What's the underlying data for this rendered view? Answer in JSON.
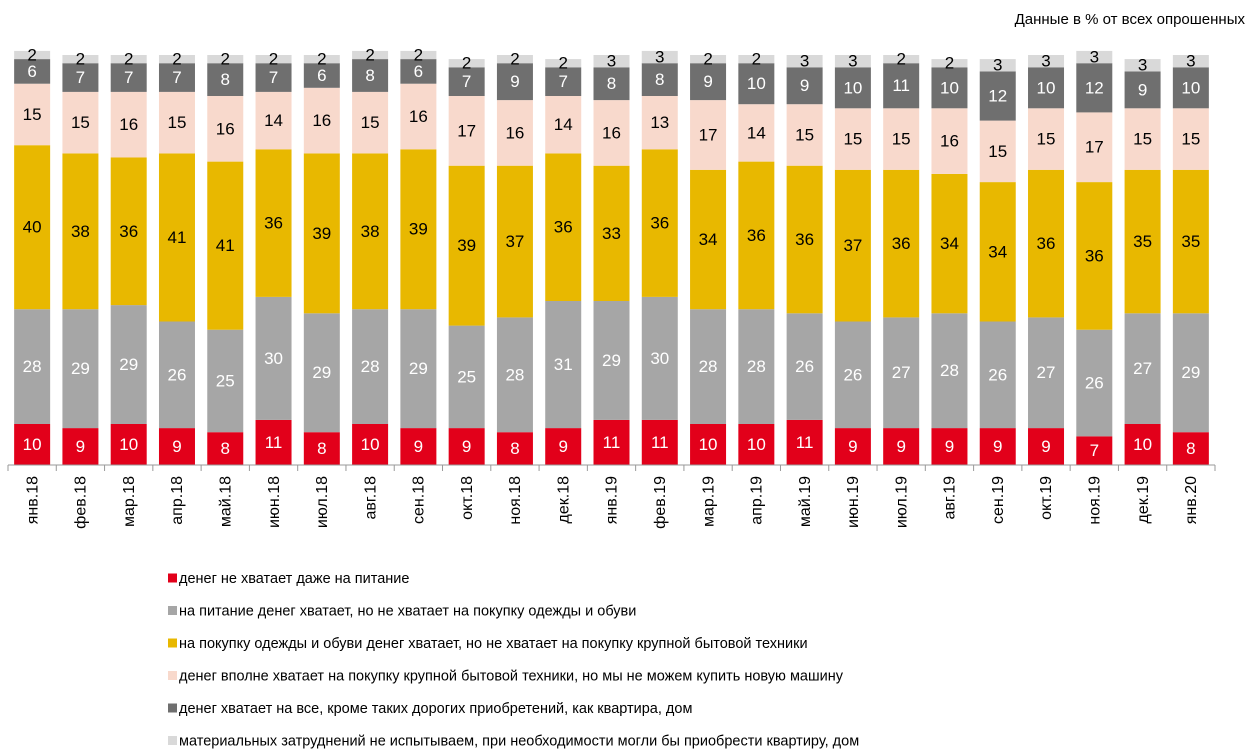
{
  "chart_data": {
    "type": "stacked_bar",
    "note": "Данные в % от всех опрошенных",
    "categories": [
      "янв.18",
      "фев.18",
      "мар.18",
      "апр.18",
      "май.18",
      "июн.18",
      "июл.18",
      "авг.18",
      "сен.18",
      "окт.18",
      "ноя.18",
      "дек.18",
      "янв.19",
      "фев.19",
      "мар.19",
      "апр.19",
      "май.19",
      "июн.19",
      "июл.19",
      "авг.19",
      "сен.19",
      "окт.19",
      "ноя.19",
      "дек.19",
      "янв.20"
    ],
    "series": [
      {
        "name": "денег не хватает даже на питание",
        "color": "#e2001a",
        "label_color": "#ffffff",
        "values": [
          10,
          9,
          10,
          9,
          8,
          11,
          8,
          10,
          9,
          9,
          8,
          9,
          11,
          11,
          10,
          10,
          11,
          9,
          9,
          9,
          9,
          9,
          7,
          10,
          8
        ]
      },
      {
        "name": "на питание денег хватает, но не хватает на покупку одежды и обуви",
        "color": "#a6a6a6",
        "label_color": "#ffffff",
        "values": [
          28,
          29,
          29,
          26,
          25,
          30,
          29,
          28,
          29,
          25,
          28,
          31,
          29,
          30,
          28,
          28,
          26,
          26,
          27,
          28,
          26,
          27,
          26,
          27,
          29
        ]
      },
      {
        "name": "на покупку одежды и обуви денег хватает,  но не хватает на покупку крупной бытовой техники",
        "color": "#e8b800",
        "label_color": "#000000",
        "values": [
          40,
          38,
          36,
          41,
          41,
          36,
          39,
          38,
          39,
          39,
          37,
          36,
          33,
          36,
          34,
          36,
          36,
          37,
          36,
          34,
          34,
          36,
          36,
          35,
          35
        ]
      },
      {
        "name": "денег вполне хватает на покупку крупной бытовой техники,  но мы не можем купить новую машину",
        "color": "#f8d9cc",
        "label_color": "#000000",
        "values": [
          15,
          15,
          16,
          15,
          16,
          14,
          16,
          15,
          16,
          17,
          16,
          14,
          16,
          13,
          17,
          14,
          15,
          15,
          15,
          16,
          15,
          15,
          17,
          15,
          15
        ]
      },
      {
        "name": "денег хватает на все, кроме таких дорогих приобретений, как квартира, дом",
        "color": "#6f6f6f",
        "label_color": "#ffffff",
        "values": [
          6,
          7,
          7,
          7,
          8,
          7,
          6,
          8,
          6,
          7,
          9,
          7,
          8,
          8,
          9,
          10,
          9,
          10,
          11,
          10,
          12,
          10,
          12,
          9,
          10
        ]
      },
      {
        "name": "материальных затруднений не испытываем,  при необходимости могли бы приобрести квартиру, дом",
        "color": "#d9d9d9",
        "label_color": "#000000",
        "values": [
          2,
          2,
          2,
          2,
          2,
          2,
          2,
          2,
          2,
          2,
          2,
          2,
          3,
          3,
          2,
          2,
          3,
          3,
          2,
          2,
          3,
          3,
          3,
          3,
          3
        ]
      }
    ]
  }
}
